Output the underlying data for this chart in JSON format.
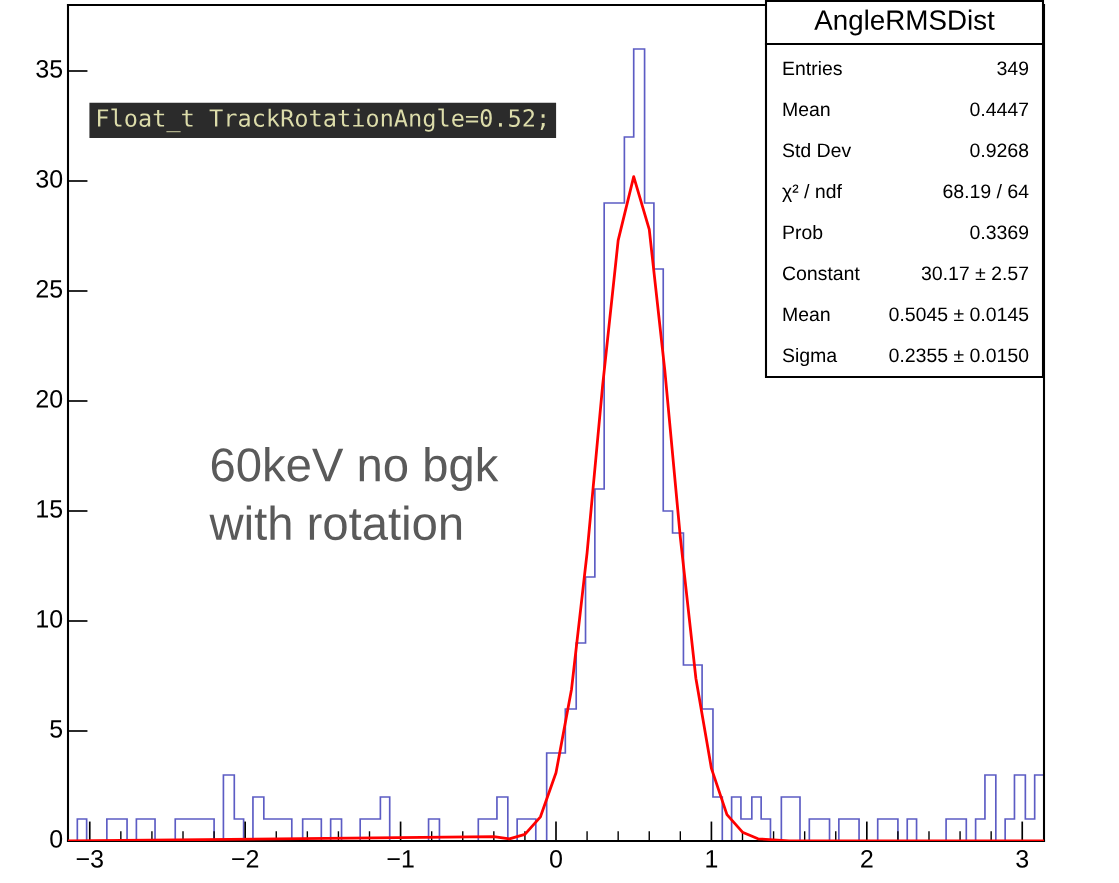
{
  "chart_data": {
    "type": "histogram",
    "title": "AngleRMSDist",
    "bins": [
      -3.14,
      -3.08,
      -3.02,
      -2.95,
      -2.89,
      -2.83,
      -2.76,
      -2.7,
      -2.64,
      -2.58,
      -2.51,
      -2.45,
      -2.39,
      -2.32,
      -2.26,
      -2.2,
      -2.14,
      -2.07,
      -2.01,
      -1.95,
      -1.88,
      -1.82,
      -1.76,
      -1.7,
      -1.63,
      -1.57,
      -1.51,
      -1.45,
      -1.38,
      -1.32,
      -1.26,
      -1.19,
      -1.13,
      -1.07,
      -1.01,
      -0.94,
      -0.88,
      -0.82,
      -0.75,
      -0.69,
      -0.63,
      -0.57,
      -0.5,
      -0.44,
      -0.38,
      -0.31,
      -0.25,
      -0.19,
      -0.13,
      -0.06,
      0,
      0.06,
      0.13,
      0.19,
      0.25,
      0.31,
      0.38,
      0.44,
      0.5,
      0.57,
      0.63,
      0.69,
      0.75,
      0.82,
      0.88,
      0.94,
      1.01,
      1.07,
      1.13,
      1.19,
      1.26,
      1.32,
      1.38,
      1.45,
      1.51,
      1.57,
      1.63,
      1.7,
      1.76,
      1.82,
      1.88,
      1.95,
      2.01,
      2.07,
      2.14,
      2.2,
      2.26,
      2.32,
      2.39,
      2.45,
      2.51,
      2.58,
      2.64,
      2.7,
      2.76,
      2.83,
      2.89,
      2.95,
      3.02,
      3.08,
      3.14
    ],
    "series": [
      {
        "type": "histogram",
        "color": "#5c5cc4",
        "values": [
          0,
          1,
          0,
          0,
          1,
          1,
          0,
          1,
          1,
          0,
          0,
          1,
          1,
          1,
          1,
          0,
          3,
          1,
          0,
          2,
          1,
          1,
          1,
          0,
          1,
          1,
          0,
          1,
          0,
          0,
          1,
          1,
          2,
          0,
          0,
          0,
          0,
          1,
          0,
          0,
          0,
          0,
          1,
          1,
          2,
          0,
          1,
          1,
          0,
          4,
          4,
          6,
          9,
          12,
          16,
          29,
          29,
          32,
          36,
          29,
          26,
          15,
          14,
          8,
          8,
          6,
          2,
          0,
          2,
          1,
          2,
          1,
          0,
          2,
          2,
          0,
          1,
          1,
          0,
          1,
          1,
          0,
          0,
          1,
          1,
          0,
          1,
          0,
          0,
          0,
          1,
          1,
          0,
          1,
          3,
          0,
          1,
          3,
          1,
          3
        ]
      },
      {
        "type": "line",
        "color": "#ff0000",
        "x": [
          -3.14,
          -0.4,
          -0.3,
          -0.2,
          -0.1,
          0,
          0.1,
          0.2,
          0.3,
          0.4,
          0.5,
          0.6,
          0.7,
          0.8,
          0.9,
          1.0,
          1.1,
          1.2,
          1.3,
          1.5,
          3.14
        ],
        "values": [
          0,
          0.2,
          0.1,
          0.3,
          1.1,
          3.1,
          6.9,
          13.1,
          20.7,
          27.3,
          30.2,
          27.8,
          21.4,
          13.8,
          7.4,
          3.3,
          1.2,
          0.4,
          0.1,
          0,
          0
        ]
      }
    ],
    "xlim": [
      -3.14,
      3.14
    ],
    "xticks": [
      -3,
      -2,
      -1,
      0,
      1,
      2,
      3
    ],
    "ylim": [
      0,
      38
    ],
    "yticks": [
      0,
      5,
      10,
      15,
      20,
      25,
      30,
      35
    ],
    "annotations": [
      "Float_t TrackRotationAngle=0.52;",
      "60keV no bgk",
      "with rotation",
      "Entries",
      "349",
      "Mean",
      "0.4447",
      "Std Dev",
      "0.9268",
      "χ² / ndf",
      "68.19 / 64",
      "Prob",
      "0.3369",
      "Constant",
      "30.17 ± 2.57",
      "Mean",
      "0.5045 ± 0.0145",
      "Sigma",
      "0.2355 ± 0.0150"
    ]
  }
}
